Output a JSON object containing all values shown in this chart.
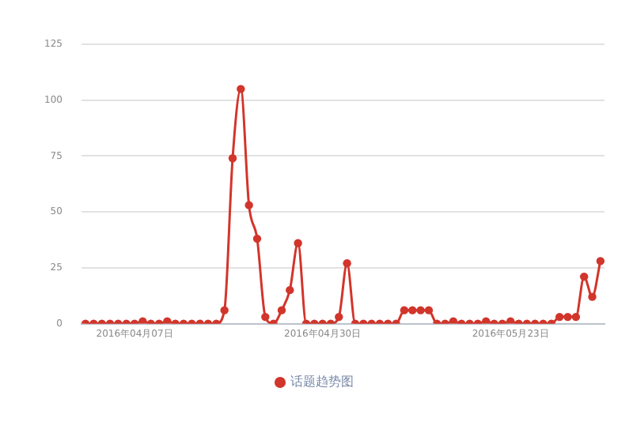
{
  "chart_data": {
    "type": "line",
    "categories": [
      null,
      null,
      null,
      null,
      null,
      null,
      "2016年04月07日",
      null,
      null,
      null,
      null,
      null,
      null,
      null,
      null,
      null,
      null,
      null,
      null,
      null,
      null,
      null,
      null,
      null,
      null,
      null,
      null,
      null,
      null,
      "2016年04月30日",
      null,
      null,
      null,
      null,
      null,
      null,
      null,
      null,
      null,
      null,
      null,
      null,
      null,
      null,
      null,
      null,
      null,
      null,
      null,
      null,
      null,
      null,
      "2016年05月23日",
      null,
      null,
      null,
      null,
      null,
      null,
      null,
      null,
      null,
      null,
      null
    ],
    "series": [
      {
        "name": "话题趋势图",
        "color": "#d2352b",
        "values": [
          0,
          0,
          0,
          0,
          0,
          0,
          0,
          1,
          0,
          0,
          1,
          0,
          0,
          0,
          0,
          0,
          0,
          6,
          74,
          105,
          53,
          38,
          3,
          0,
          6,
          15,
          36,
          0,
          0,
          0,
          0,
          3,
          27,
          0,
          0,
          0,
          0,
          0,
          0,
          6,
          6,
          6,
          6,
          0,
          0,
          1,
          0,
          0,
          0,
          1,
          0,
          0,
          1,
          0,
          0,
          0,
          0,
          0,
          3,
          3,
          3,
          21,
          12,
          28
        ]
      }
    ],
    "ylim": [
      0,
      125
    ],
    "yticks": [
      0,
      25,
      50,
      75,
      100,
      125
    ],
    "grid": "y",
    "legend": "bottom",
    "marker": "circle",
    "line_style": "solid"
  }
}
